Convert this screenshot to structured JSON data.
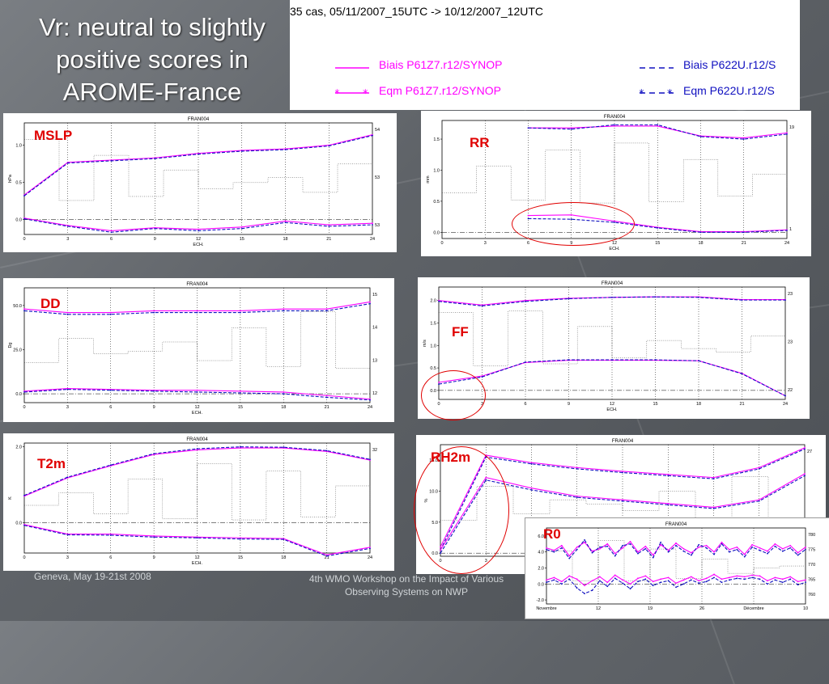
{
  "title": "Vr: neutral to slightly positive scores in AROME-France",
  "legend": {
    "header": "35 cas, 05/11/2007_15UTC -> 10/12/2007_12UTC",
    "items": [
      {
        "label": "Biais P61Z7.r12/SYNOP",
        "color": "#ff00ff",
        "style": "solid",
        "marker": false
      },
      {
        "label": "Biais P622U.r12/S",
        "color": "#1010c0",
        "style": "dashed",
        "marker": false
      },
      {
        "label": "Eqm P61Z7.r12/SYNOP",
        "color": "#ff00ff",
        "style": "solid",
        "marker": true
      },
      {
        "label": "Eqm P622U.r12/S",
        "color": "#1010c0",
        "style": "dashed",
        "marker": true
      }
    ]
  },
  "footer": {
    "left": "Geneva, May 19-21st 2008",
    "center": "4th WMO Workshop on the Impact of Various Observing Systems on NWP"
  },
  "colors": {
    "series_a": "#ff00ff",
    "series_b": "#1010c0",
    "label": "#e00000"
  },
  "chart_data": [
    {
      "id": "mslp",
      "label": "MSLP",
      "type": "line",
      "title": "FRAN004",
      "xlabel": "ECH.",
      "ylabel": "hPa",
      "x": [
        0,
        3,
        6,
        9,
        12,
        15,
        18,
        21,
        24
      ],
      "xticks": [
        "0",
        "3",
        "6",
        "9",
        "12",
        "15",
        "18",
        "21",
        "24"
      ],
      "ylim": [
        -0.2,
        1.3
      ],
      "yticks": [
        0.0,
        0.5,
        1.0
      ],
      "right_ticks": [
        "54",
        "53",
        "53"
      ],
      "series": [
        {
          "values": [
            0.33,
            0.77,
            0.8,
            0.83,
            0.89,
            0.93,
            0.95,
            1.0,
            1.14
          ],
          "style": "a"
        },
        {
          "values": [
            0.32,
            0.76,
            0.79,
            0.82,
            0.88,
            0.92,
            0.94,
            0.99,
            1.13
          ],
          "style": "b"
        },
        {
          "values": [
            0.02,
            -0.08,
            -0.15,
            -0.11,
            -0.13,
            -0.1,
            -0.02,
            -0.07,
            -0.05
          ],
          "style": "a"
        },
        {
          "values": [
            0.01,
            -0.09,
            -0.17,
            -0.12,
            -0.15,
            -0.12,
            -0.04,
            -0.09,
            -0.07
          ],
          "style": "b"
        }
      ]
    },
    {
      "id": "rr",
      "label": "RR",
      "type": "line",
      "title": "FRAN004",
      "xlabel": "ECH.",
      "ylabel": "mm",
      "x": [
        6,
        9,
        12,
        15,
        18,
        21,
        24
      ],
      "xticks": [
        "0",
        "3",
        "6",
        "9",
        "12",
        "15",
        "18",
        "21",
        "24"
      ],
      "xlim": [
        0,
        24
      ],
      "ylim": [
        -0.1,
        1.8
      ],
      "yticks": [
        0.0,
        0.5,
        1.0,
        1.5
      ],
      "right_ticks": [
        "19",
        "1"
      ],
      "series": [
        {
          "values": [
            1.68,
            1.68,
            1.71,
            1.71,
            1.55,
            1.52,
            1.6
          ],
          "style": "a"
        },
        {
          "values": [
            1.68,
            1.66,
            1.73,
            1.73,
            1.54,
            1.5,
            1.58
          ],
          "style": "b"
        },
        {
          "values": [
            0.27,
            0.28,
            0.18,
            0.08,
            0.01,
            0.01,
            0.04
          ],
          "style": "a"
        },
        {
          "values": [
            0.22,
            0.21,
            0.16,
            0.07,
            0.0,
            0.0,
            0.03
          ],
          "style": "b"
        }
      ]
    },
    {
      "id": "dd",
      "label": "DD",
      "type": "line",
      "title": "FRAN004",
      "xlabel": "ECH.",
      "ylabel": "Dg",
      "x": [
        0,
        3,
        6,
        9,
        12,
        15,
        18,
        21,
        24
      ],
      "xticks": [
        "0",
        "3",
        "6",
        "9",
        "12",
        "15",
        "18",
        "21",
        "24"
      ],
      "ylim": [
        -5,
        60
      ],
      "yticks": [
        0.0,
        25.0,
        50.0
      ],
      "right_ticks": [
        "15",
        "14",
        "13",
        "12"
      ],
      "series": [
        {
          "values": [
            48,
            46,
            46,
            47,
            47,
            47,
            48,
            48,
            52
          ],
          "style": "a"
        },
        {
          "values": [
            47,
            45,
            45,
            46,
            46,
            46,
            47,
            47,
            51
          ],
          "style": "b"
        },
        {
          "values": [
            1.5,
            3.0,
            2.5,
            2.0,
            2.0,
            1.5,
            1.0,
            -1.0,
            -3.0
          ],
          "style": "a"
        },
        {
          "values": [
            1.0,
            2.5,
            2.0,
            1.5,
            1.0,
            0.5,
            0.0,
            -2.0,
            -3.5
          ],
          "style": "b"
        }
      ]
    },
    {
      "id": "ff",
      "label": "FF",
      "type": "line",
      "title": "FRAN004",
      "xlabel": "ECH.",
      "ylabel": "m/s",
      "x": [
        0,
        3,
        6,
        9,
        12,
        15,
        18,
        21,
        24
      ],
      "xticks": [
        "0",
        "3",
        "6",
        "9",
        "12",
        "15",
        "18",
        "21",
        "24"
      ],
      "ylim": [
        -0.2,
        2.3
      ],
      "yticks": [
        0.0,
        0.5,
        1.0,
        1.5,
        2.0
      ],
      "right_ticks": [
        "23",
        "23",
        "22"
      ],
      "series": [
        {
          "values": [
            2.0,
            1.9,
            2.0,
            2.05,
            2.07,
            2.08,
            2.08,
            2.02,
            2.02
          ],
          "style": "a"
        },
        {
          "values": [
            1.98,
            1.88,
            1.98,
            2.04,
            2.07,
            2.08,
            2.07,
            2.01,
            2.01
          ],
          "style": "b"
        },
        {
          "values": [
            0.18,
            0.32,
            0.62,
            0.67,
            0.67,
            0.67,
            0.66,
            0.38,
            -0.12
          ],
          "style": "a"
        },
        {
          "values": [
            0.14,
            0.3,
            0.63,
            0.68,
            0.68,
            0.68,
            0.66,
            0.37,
            -0.12
          ],
          "style": "b"
        }
      ]
    },
    {
      "id": "t2m",
      "label": "T2m",
      "type": "line",
      "title": "FRAN004",
      "xlabel": "ECH.",
      "ylabel": "K",
      "x": [
        0,
        3,
        6,
        9,
        12,
        15,
        18,
        21,
        24
      ],
      "xticks": [
        "0",
        "3",
        "6",
        "9",
        "12",
        "15",
        "18",
        "21",
        "24"
      ],
      "ylim": [
        -0.8,
        2.1
      ],
      "yticks": [
        0.0,
        2.0
      ],
      "right_ticks": [
        "32"
      ],
      "series": [
        {
          "values": [
            0.7,
            1.18,
            1.5,
            1.8,
            1.92,
            1.97,
            1.97,
            1.88,
            1.65
          ],
          "style": "a"
        },
        {
          "values": [
            0.72,
            1.2,
            1.52,
            1.82,
            1.95,
            2.0,
            1.99,
            1.9,
            1.67
          ],
          "style": "b"
        },
        {
          "values": [
            -0.05,
            -0.3,
            -0.3,
            -0.35,
            -0.38,
            -0.4,
            -0.42,
            -0.85,
            -0.65
          ],
          "style": "a"
        },
        {
          "values": [
            -0.07,
            -0.32,
            -0.33,
            -0.38,
            -0.4,
            -0.43,
            -0.44,
            -0.88,
            -0.68
          ],
          "style": "b"
        }
      ]
    },
    {
      "id": "rh2m",
      "label": "RH2m",
      "type": "line",
      "title": "FRAN004",
      "xlabel": "ECH.",
      "ylabel": "%",
      "x": [
        0,
        3,
        6,
        9,
        12,
        15,
        18,
        21,
        24
      ],
      "xticks": [
        "0",
        "3",
        "6",
        "9",
        "12",
        "15",
        "18",
        "21",
        "24"
      ],
      "ylim": [
        -0.5,
        17.5
      ],
      "yticks": [
        0.0,
        5.0,
        10.0,
        15.0
      ],
      "right_ticks": [
        "27",
        "26"
      ],
      "series": [
        {
          "values": [
            1.0,
            15.8,
            14.6,
            13.8,
            13.2,
            12.7,
            12.2,
            13.8,
            17.0
          ],
          "style": "a"
        },
        {
          "values": [
            0.5,
            15.5,
            14.4,
            13.6,
            13.0,
            12.5,
            12.0,
            13.6,
            16.8
          ],
          "style": "b"
        },
        {
          "values": [
            0.5,
            12.2,
            10.5,
            9.2,
            8.6,
            8.0,
            7.4,
            8.6,
            12.8
          ],
          "style": "a"
        },
        {
          "values": [
            0.0,
            11.8,
            10.2,
            9.0,
            8.4,
            7.8,
            7.2,
            8.4,
            12.5
          ],
          "style": "b"
        }
      ]
    },
    {
      "id": "r0",
      "label": "R0",
      "type": "line",
      "title": "FRAN004",
      "xlabel": "",
      "ylabel": "",
      "x": [
        0,
        1,
        2,
        3,
        4,
        5,
        6,
        7,
        8,
        9,
        10,
        11,
        12,
        13,
        14,
        15,
        16,
        17,
        18,
        19,
        20,
        21,
        22,
        23,
        24,
        25,
        26,
        27,
        28,
        29,
        30,
        31,
        32,
        33,
        34
      ],
      "xticks": [
        "Novembre",
        "12",
        "19",
        "26",
        "Décembre",
        "10"
      ],
      "ylim": [
        -2.5,
        7.0
      ],
      "yticks": [
        -2.0,
        0.0,
        2.0,
        4.0,
        6.0
      ],
      "right_ticks": [
        "780",
        "775",
        "770",
        "765",
        "760"
      ],
      "series": [
        {
          "values": [
            4.5,
            4.2,
            4.8,
            3.5,
            4.6,
            5.2,
            4.1,
            4.4,
            5.0,
            3.8,
            4.5,
            5.3,
            4.0,
            4.7,
            3.6,
            4.9,
            4.2,
            5.1,
            4.4,
            3.9,
            4.6,
            4.8,
            4.0,
            5.2,
            4.3,
            4.6,
            3.7,
            4.9,
            4.5,
            4.1,
            5.0,
            4.4,
            4.8,
            3.9,
            4.6
          ],
          "style": "a"
        },
        {
          "values": [
            4.3,
            4.0,
            4.5,
            3.2,
            4.3,
            5.5,
            3.9,
            4.6,
            4.7,
            3.5,
            4.8,
            5.0,
            3.8,
            4.4,
            3.3,
            5.2,
            4.0,
            4.8,
            4.1,
            3.6,
            4.9,
            4.5,
            3.7,
            5.0,
            4.0,
            4.3,
            3.4,
            4.6,
            4.2,
            3.8,
            4.7,
            4.1,
            4.5,
            3.6,
            4.3
          ],
          "style": "b"
        },
        {
          "values": [
            0.5,
            0.8,
            0.3,
            1.0,
            0.6,
            -0.2,
            0.4,
            0.9,
            0.2,
            1.1,
            0.5,
            0.0,
            0.7,
            1.0,
            0.3,
            0.6,
            0.8,
            0.1,
            0.5,
            0.9,
            0.4,
            0.7,
            1.2,
            0.6,
            0.8,
            1.0,
            0.9,
            1.1,
            1.0,
            0.4,
            0.8,
            0.6,
            0.9,
            0.3,
            0.5
          ],
          "style": "a"
        },
        {
          "values": [
            0.2,
            0.5,
            0.0,
            0.6,
            -0.5,
            -1.2,
            -0.8,
            0.4,
            -0.3,
            0.7,
            0.1,
            -0.6,
            0.3,
            0.6,
            -0.2,
            0.2,
            0.4,
            -0.4,
            0.0,
            0.5,
            0.1,
            0.3,
            0.8,
            0.2,
            0.5,
            0.7,
            0.6,
            0.8,
            0.6,
            0.0,
            0.5,
            0.2,
            0.6,
            -0.1,
            0.2
          ],
          "style": "b"
        }
      ]
    }
  ]
}
